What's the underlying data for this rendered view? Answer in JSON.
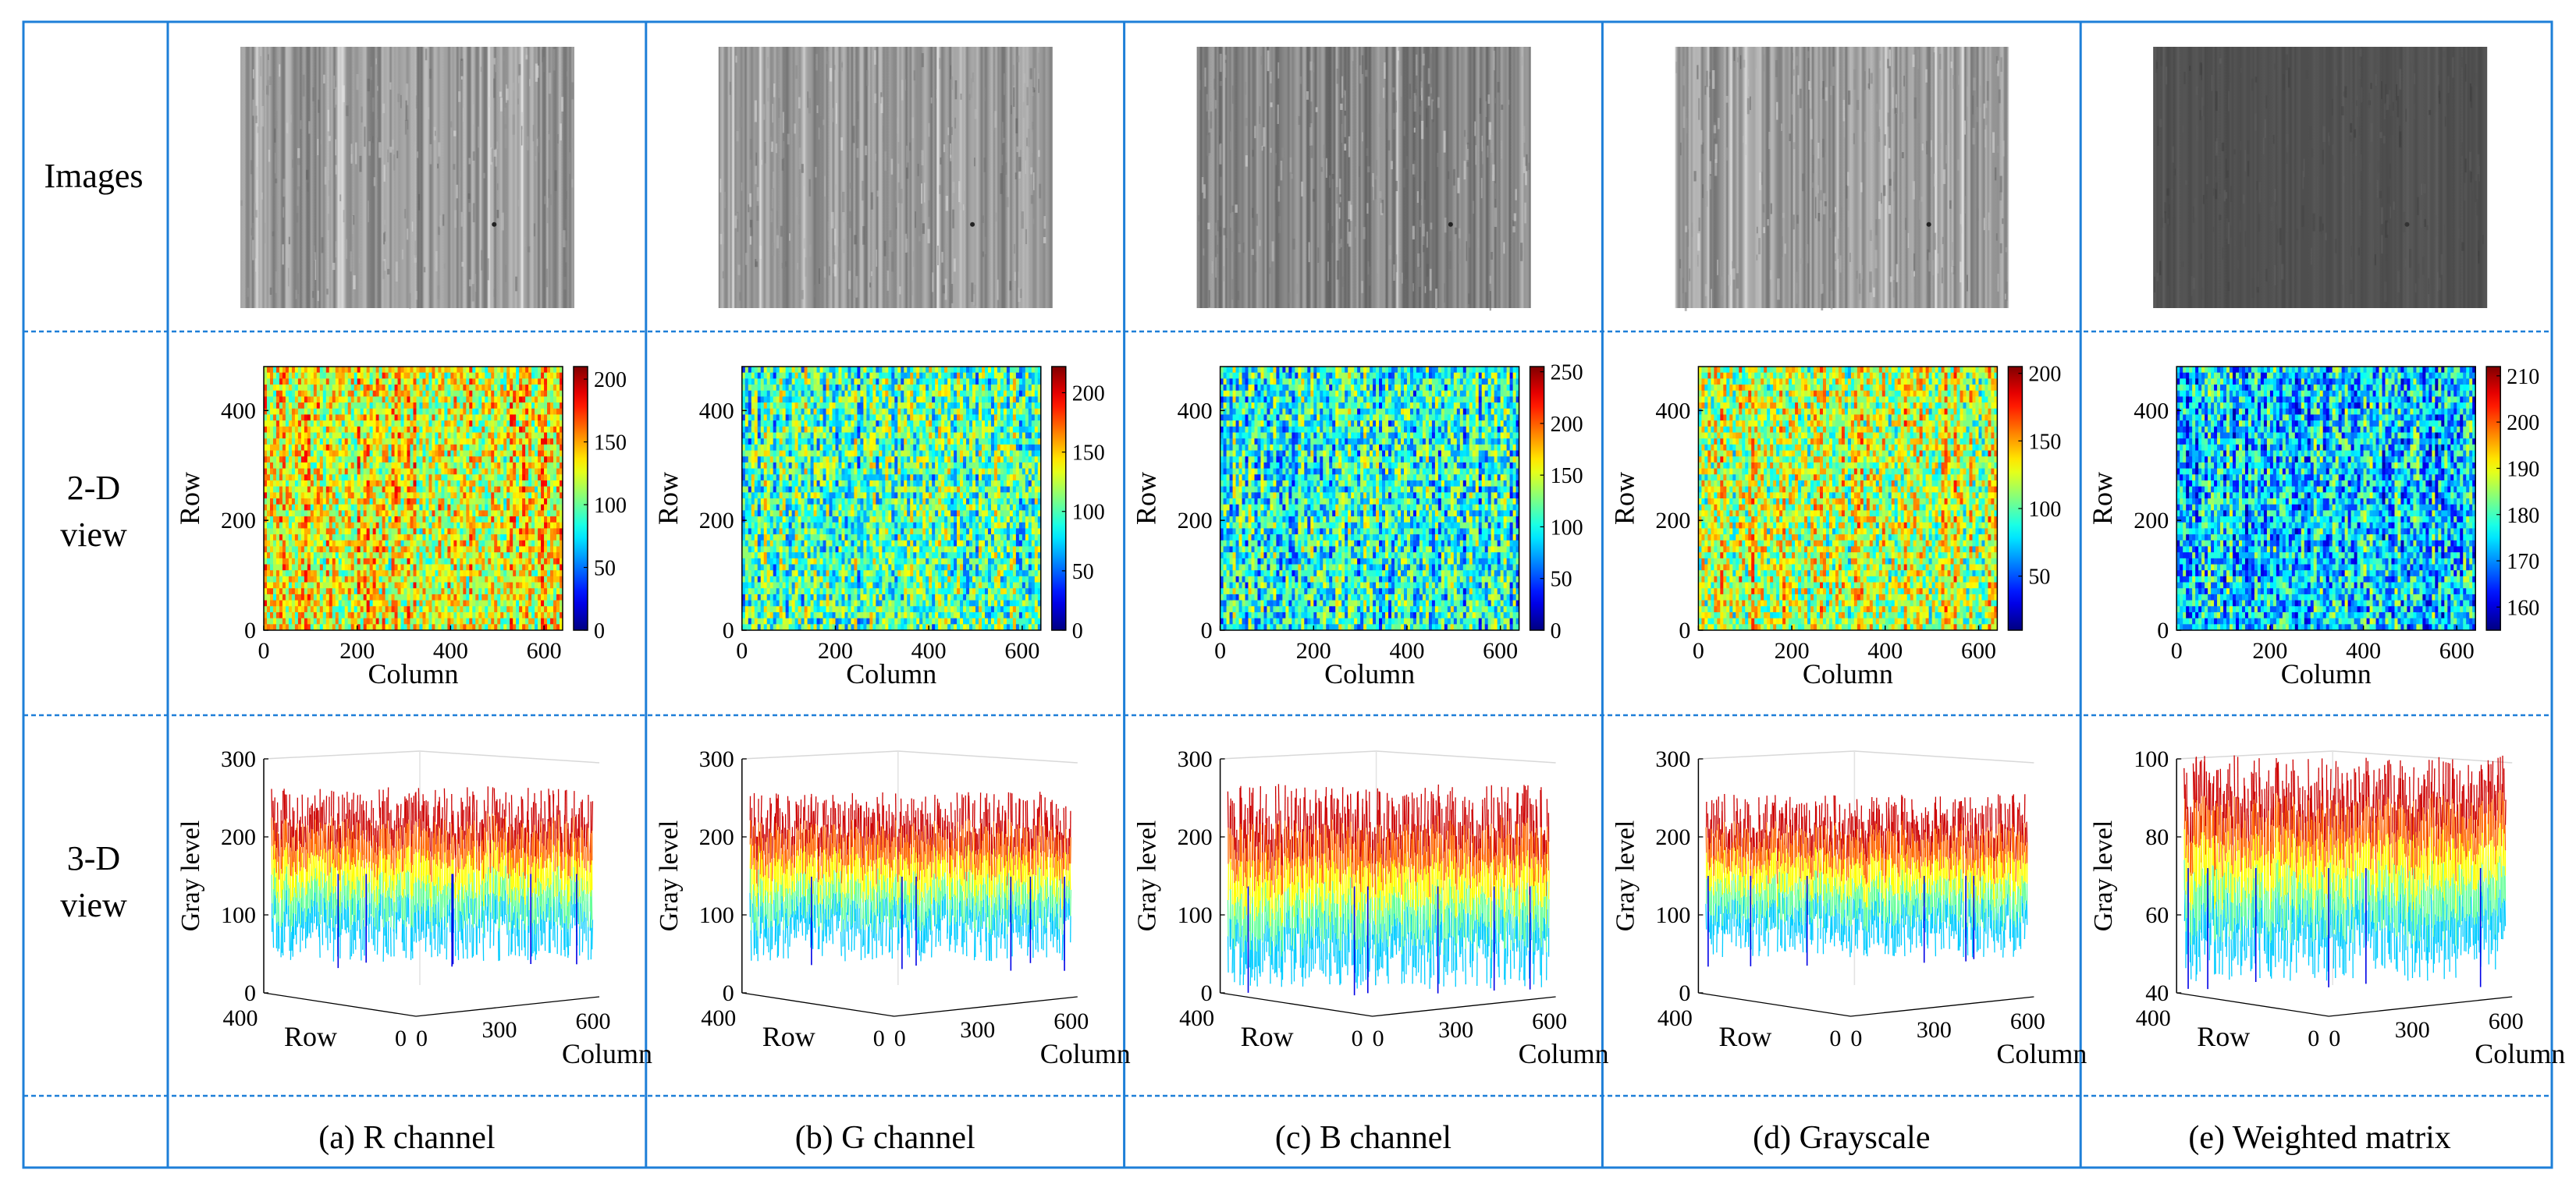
{
  "row_headers": {
    "images": "Images",
    "two_d": [
      "2-D",
      "view"
    ],
    "three_d": [
      "3-D",
      "view"
    ]
  },
  "columns": [
    {
      "caption": "(a) R channel",
      "image_tone": "light",
      "cbar_ticks": [
        "0",
        "50",
        "100",
        "150",
        "200"
      ],
      "cbar_min": 0,
      "cbar_max": 210,
      "map_bias": 0.62,
      "z_ticks": [
        "0",
        "100",
        "200",
        "300"
      ],
      "z_min": 0,
      "z_max": 300,
      "surface_low": 40,
      "surface_high": 265
    },
    {
      "caption": "(b) G channel",
      "image_tone": "light",
      "cbar_ticks": [
        "0",
        "50",
        "100",
        "150",
        "200"
      ],
      "cbar_min": 0,
      "cbar_max": 222,
      "map_bias": 0.45,
      "z_ticks": [
        "0",
        "100",
        "200",
        "300"
      ],
      "z_min": 0,
      "z_max": 300,
      "surface_low": 40,
      "surface_high": 258
    },
    {
      "caption": "(c) B channel",
      "image_tone": "mid",
      "cbar_ticks": [
        "0",
        "50",
        "100",
        "150",
        "200",
        "250"
      ],
      "cbar_min": 0,
      "cbar_max": 255,
      "map_bias": 0.4,
      "z_ticks": [
        "0",
        "100",
        "200",
        "300"
      ],
      "z_min": 0,
      "z_max": 300,
      "surface_low": 5,
      "surface_high": 268
    },
    {
      "caption": "(d) Grayscale",
      "image_tone": "light",
      "cbar_ticks": [
        "50",
        "100",
        "150",
        "200"
      ],
      "cbar_min": 10,
      "cbar_max": 205,
      "map_bias": 0.57,
      "z_ticks": [
        "0",
        "100",
        "200",
        "300"
      ],
      "z_min": 0,
      "z_max": 300,
      "surface_low": 45,
      "surface_high": 255
    },
    {
      "caption": "(e) Weighted matrix",
      "image_tone": "dark",
      "cbar_ticks": [
        "160",
        "170",
        "180",
        "190",
        "200",
        "210"
      ],
      "cbar_min": 155,
      "cbar_max": 212,
      "map_bias": 0.32,
      "z_ticks": [
        "40",
        "60",
        "80",
        "100"
      ],
      "z_min": 40,
      "z_max": 100,
      "surface_low": 43,
      "surface_high": 101
    }
  ],
  "axes_2d": {
    "ylabel": "Row",
    "xlabel": "Column",
    "yticks": [
      "0",
      "200",
      "400"
    ],
    "xticks": [
      "0",
      "200",
      "400",
      "600"
    ]
  },
  "axes_3d": {
    "zlabel": "Gray level",
    "row_label": "Row",
    "col_label": "Column",
    "row_ticks": [
      "400",
      "0"
    ],
    "col_ticks": [
      "0",
      "300",
      "600"
    ]
  },
  "colors": {
    "grid_border": "#1e7fd8",
    "panel_axes": "#000000"
  }
}
